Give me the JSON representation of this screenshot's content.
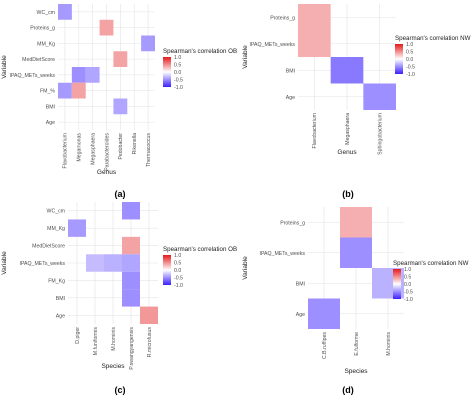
{
  "colors": {
    "high": "#e41a1c",
    "mid": "#ffffff",
    "low": "#3a1fff",
    "grid": "#e3e3e3",
    "tick": "#4d4d4d",
    "axis_title": "#222222"
  },
  "chart_data": [
    {
      "panel_label": "(a)",
      "type": "heatmap",
      "xlabel": "Genus",
      "ylabel": "Variable",
      "legend_title": "Spearman's correlation OB",
      "legend_ticks": [
        "1.0",
        "0.5",
        "0.0",
        "-0.5",
        "-1.0"
      ],
      "limits": [
        -1,
        1
      ],
      "x": [
        "Flavobacterium",
        "Megamonas",
        "Megasphaera",
        "Parabacteroides",
        "Pedobacter",
        "Rikenella",
        "Thermacoccus"
      ],
      "y": [
        "WC_cm",
        "Proteins_g",
        "MM_Kg",
        "MedDietScore",
        "IPAQ_METs_weeks",
        "FM_%",
        "BMI",
        "Age"
      ],
      "cells": [
        {
          "x": "Flavobacterium",
          "y": "WC_cm",
          "value": -0.45
        },
        {
          "x": "Parabacteroides",
          "y": "Proteins_g",
          "value": 0.4
        },
        {
          "x": "Thermacoccus",
          "y": "MM_Kg",
          "value": -0.45
        },
        {
          "x": "Pedobacter",
          "y": "MedDietScore",
          "value": 0.4
        },
        {
          "x": "Megamonas",
          "y": "IPAQ_METs_weeks",
          "value": -0.5
        },
        {
          "x": "Megasphaera",
          "y": "IPAQ_METs_weeks",
          "value": -0.4
        },
        {
          "x": "Flavobacterium",
          "y": "FM_%",
          "value": -0.45
        },
        {
          "x": "Megamonas",
          "y": "FM_%",
          "value": 0.4
        },
        {
          "x": "Pedobacter",
          "y": "BMI",
          "value": -0.4
        }
      ]
    },
    {
      "panel_label": "(b)",
      "type": "heatmap",
      "xlabel": "Genus",
      "ylabel": "Variable",
      "legend_title": "Spearman's correlation NW",
      "legend_ticks": [
        "1.0",
        "0.5",
        "0.0",
        "-0.5",
        "-1.0"
      ],
      "limits": [
        -1,
        1
      ],
      "x": [
        "Flavobacterium",
        "Megasphaera",
        "Sphingobacterium"
      ],
      "y": [
        "Proteins_g",
        "IPAQ_METs_weeks",
        "BMI",
        "Age"
      ],
      "cells": [
        {
          "x": "Flavobacterium",
          "y": "Proteins_g",
          "value": 0.35
        },
        {
          "x": "Flavobacterium",
          "y": "IPAQ_METs_weeks",
          "value": 0.35
        },
        {
          "x": "Megasphaera",
          "y": "BMI",
          "value": -0.6
        },
        {
          "x": "Sphingobacterium",
          "y": "Age",
          "value": -0.5
        }
      ]
    },
    {
      "panel_label": "(c)",
      "type": "heatmap",
      "xlabel": "Species",
      "ylabel": "Variable",
      "legend_title": "Spearman's correlation OB",
      "legend_ticks": [
        "1.0",
        "0.5",
        "0.0",
        "-0.5",
        "-1.0"
      ],
      "limits": [
        -1,
        1
      ],
      "x": [
        "D.piger",
        "M.funiformis",
        "M.hominis",
        "P.swangyangensis",
        "R.microfusus"
      ],
      "y": [
        "WC_cm",
        "MM_Kg",
        "MedDietScore",
        "IPAQ_METs_weeks",
        "FM_Kg",
        "BMI",
        "Age"
      ],
      "cells": [
        {
          "x": "P.swangyangensis",
          "y": "WC_cm",
          "value": -0.5
        },
        {
          "x": "D.piger",
          "y": "MM_Kg",
          "value": -0.45
        },
        {
          "x": "P.swangyangensis",
          "y": "MedDietScore",
          "value": 0.4
        },
        {
          "x": "M.funiformis",
          "y": "IPAQ_METs_weeks",
          "value": -0.3
        },
        {
          "x": "M.hominis",
          "y": "IPAQ_METs_weeks",
          "value": -0.35
        },
        {
          "x": "P.swangyangensis",
          "y": "IPAQ_METs_weeks",
          "value": -0.4
        },
        {
          "x": "P.swangyangensis",
          "y": "FM_Kg",
          "value": -0.5
        },
        {
          "x": "P.swangyangensis",
          "y": "BMI",
          "value": -0.5
        },
        {
          "x": "R.microfusus",
          "y": "Age",
          "value": 0.45
        }
      ]
    },
    {
      "panel_label": "(d)",
      "type": "heatmap",
      "xlabel": "Species",
      "ylabel": "Variable",
      "legend_title": "Spearman's correlation NW",
      "legend_ticks": [
        "1.0",
        "0.5",
        "0.0",
        "-0.5",
        "-1.0"
      ],
      "limits": [
        -1,
        1
      ],
      "x": [
        "C.B.ruffipes",
        "E.fulforme",
        "M.hominis"
      ],
      "y": [
        "Proteins_g",
        "IPAQ_METs_weeks",
        "BMI",
        "Age"
      ],
      "cells": [
        {
          "x": "E.fulforme",
          "y": "Proteins_g",
          "value": 0.35
        },
        {
          "x": "E.fulforme",
          "y": "IPAQ_METs_weeks",
          "value": -0.5
        },
        {
          "x": "M.hominis",
          "y": "BMI",
          "value": -0.35
        },
        {
          "x": "C.B.ruffipes",
          "y": "Age",
          "value": -0.5
        }
      ]
    }
  ]
}
